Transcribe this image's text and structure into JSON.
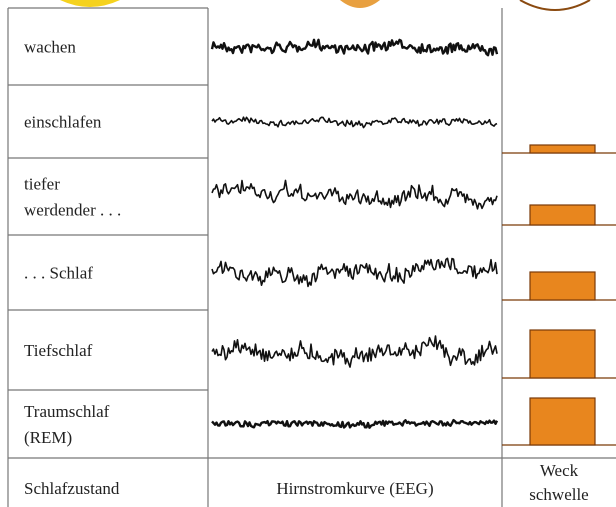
{
  "rows": [
    {
      "label": [
        "wachen"
      ]
    },
    {
      "label": [
        "einschlafen"
      ]
    },
    {
      "label": [
        "tiefer",
        "werdender . . ."
      ]
    },
    {
      "label": [
        ". . . Schlaf"
      ]
    },
    {
      "label": [
        "Tiefschlaf"
      ]
    },
    {
      "label": [
        "Traumschlaf",
        "(REM)"
      ]
    }
  ],
  "footer": {
    "state": [
      "Schlafzustand"
    ],
    "eeg": [
      "Hirnstromkurve (EEG)"
    ],
    "threshold": [
      "Weck",
      "schwelle"
    ]
  }
}
